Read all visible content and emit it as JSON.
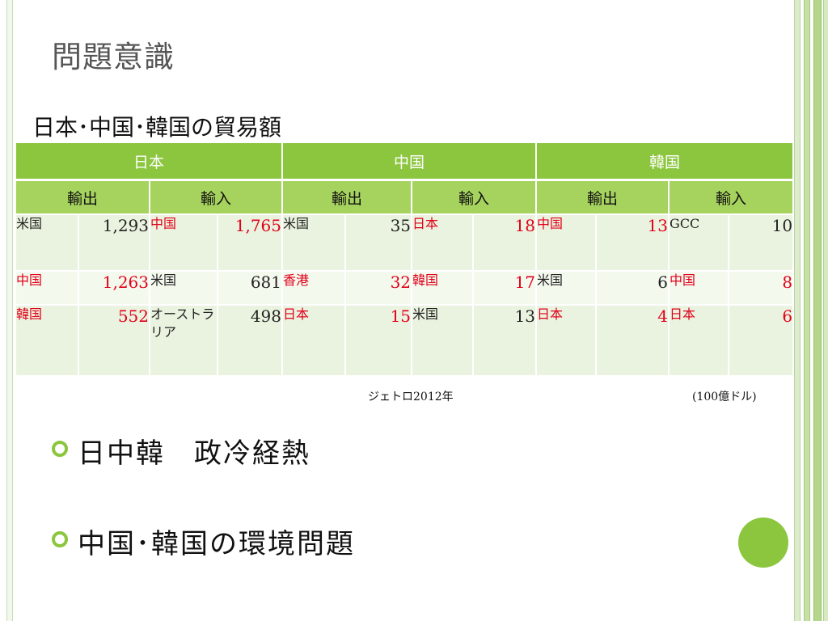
{
  "title": "問題意識",
  "caption": "日本･中国･韓国の貿易額",
  "table": {
    "countries": [
      "日本",
      "中国",
      "韓国"
    ],
    "subheaders": [
      "輸出",
      "輸入",
      "輸出",
      "輸入",
      "輸出",
      "輸入"
    ],
    "rows": [
      [
        {
          "name": "米国",
          "name_red": false,
          "value": "1,293",
          "value_red": false
        },
        {
          "name": "中国",
          "name_red": true,
          "value": "1,765",
          "value_red": true
        },
        {
          "name": "米国",
          "name_red": false,
          "value": "35",
          "value_red": false
        },
        {
          "name": "日本",
          "name_red": true,
          "value": "18",
          "value_red": true
        },
        {
          "name": "中国",
          "name_red": true,
          "value": "13",
          "value_red": true
        },
        {
          "name": "GCC",
          "name_red": false,
          "value": "10",
          "value_red": false
        }
      ],
      [
        {
          "name": "中国",
          "name_red": true,
          "value": "1,263",
          "value_red": true
        },
        {
          "name": "米国",
          "name_red": false,
          "value": "681",
          "value_red": false
        },
        {
          "name": "香港",
          "name_red": true,
          "value": "32",
          "value_red": true
        },
        {
          "name": "韓国",
          "name_red": true,
          "value": "17",
          "value_red": true
        },
        {
          "name": "米国",
          "name_red": false,
          "value": "6",
          "value_red": false
        },
        {
          "name": "中国",
          "name_red": true,
          "value": "8",
          "value_red": true
        }
      ],
      [
        {
          "name": "韓国",
          "name_red": true,
          "value": "552",
          "value_red": true
        },
        {
          "name": "オーストラリア",
          "name_red": false,
          "value": "498",
          "value_red": false
        },
        {
          "name": "日本",
          "name_red": true,
          "value": "15",
          "value_red": true
        },
        {
          "name": "米国",
          "name_red": false,
          "value": "13",
          "value_red": false
        },
        {
          "name": "日本",
          "name_red": true,
          "value": "4",
          "value_red": true
        },
        {
          "name": "日本",
          "name_red": true,
          "value": "6",
          "value_red": true
        }
      ]
    ]
  },
  "source": "ジェトロ2012年",
  "unit": "(100億ドル)",
  "bullets": [
    "日中韓　政冷経熱",
    "中国･韓国の環境問題"
  ],
  "colors": {
    "accent": "#8cc63f",
    "highlight": "#e2001a"
  }
}
